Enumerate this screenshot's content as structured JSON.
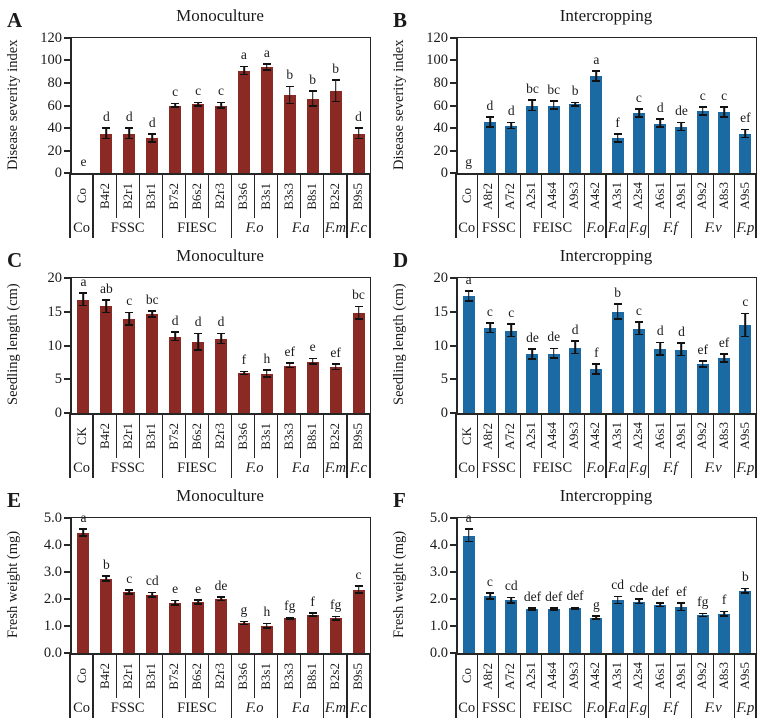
{
  "figure": {
    "background": "#ffffff",
    "axis_color": "#262626",
    "error_bar_color": "#111111",
    "monoculture_bar_color": "#8b2a25",
    "intercropping_bar_color": "#1c6aa3"
  },
  "chart_data": [
    {
      "type": "bar",
      "panel": "A",
      "title": "Monoculture",
      "ylabel": "Disease severity index",
      "ylim": [
        0,
        120
      ],
      "yticks": [
        "120",
        "100",
        "80",
        "60",
        "40",
        "20",
        "0"
      ],
      "bar_color": "#8b2a25",
      "categories": [
        "Co",
        "B4r2",
        "B2r1",
        "B3r1",
        "B7s2",
        "B6s2",
        "B2r3",
        "B3s6",
        "B3s1",
        "B3s3",
        "B8s1",
        "B2s2",
        "B9s5"
      ],
      "values": [
        0,
        35,
        35,
        31,
        60,
        61,
        60,
        91,
        94,
        69,
        66,
        73,
        35
      ],
      "errors": [
        0,
        5,
        5,
        4,
        2,
        2,
        3,
        4,
        3,
        8,
        7,
        10,
        5
      ],
      "sig_letters": [
        "e",
        "d",
        "d",
        "d",
        "c",
        "c",
        "c",
        "a",
        "a",
        "b",
        "b",
        "b",
        "d"
      ],
      "groups": [
        {
          "label": "Co",
          "span": 1,
          "italic": false
        },
        {
          "label": "FSSC",
          "span": 3,
          "italic": false
        },
        {
          "label": "FIESC",
          "span": 3,
          "italic": false
        },
        {
          "label": "F.o",
          "span": 2,
          "italic": true
        },
        {
          "label": "F.a",
          "span": 2,
          "italic": true
        },
        {
          "label": "F.m",
          "span": 1,
          "italic": true
        },
        {
          "label": "F.c",
          "span": 1,
          "italic": true
        }
      ]
    },
    {
      "type": "bar",
      "panel": "B",
      "title": "Intercropping",
      "ylabel": "Disease severity index",
      "ylim": [
        0,
        120
      ],
      "yticks": [
        "120",
        "100",
        "80",
        "60",
        "40",
        "20",
        "0"
      ],
      "bar_color": "#1c6aa3",
      "categories": [
        "Co",
        "A8r2",
        "A7r2",
        "A2s1",
        "A4s4",
        "A9s3",
        "A4s2",
        "A3s1",
        "A2s4",
        "A6s1",
        "A9s1",
        "A9s2",
        "A8s3",
        "A9s5"
      ],
      "values": [
        0,
        45,
        42,
        60,
        60,
        61,
        86,
        31,
        53,
        44,
        41,
        55,
        54,
        35
      ],
      "errors": [
        0,
        5,
        3,
        5,
        4,
        2,
        5,
        4,
        4,
        4,
        4,
        4,
        5,
        4
      ],
      "sig_letters": [
        "g",
        "d",
        "d",
        "bc",
        "bc",
        "b",
        "a",
        "f",
        "c",
        "d",
        "de",
        "c",
        "c",
        "ef"
      ],
      "groups": [
        {
          "label": "Co",
          "span": 1,
          "italic": false
        },
        {
          "label": "FSSC",
          "span": 2,
          "italic": false
        },
        {
          "label": "FEISC",
          "span": 3,
          "italic": false
        },
        {
          "label": "F.o",
          "span": 1,
          "italic": true
        },
        {
          "label": "F.a",
          "span": 1,
          "italic": true
        },
        {
          "label": "F.g",
          "span": 1,
          "italic": true
        },
        {
          "label": "F.f",
          "span": 2,
          "italic": true
        },
        {
          "label": "F.v",
          "span": 2,
          "italic": true
        },
        {
          "label": "F.p",
          "span": 1,
          "italic": true
        }
      ]
    },
    {
      "type": "bar",
      "panel": "C",
      "title": "Monoculture",
      "ylabel": "Seedling length (cm)",
      "ylim": [
        0,
        20
      ],
      "yticks": [
        "20",
        "15",
        "10",
        "5",
        "0"
      ],
      "bar_color": "#8b2a25",
      "categories": [
        "CK",
        "B4r2",
        "B2r1",
        "B3r1",
        "B7s2",
        "B6s2",
        "B2r3",
        "B3s6",
        "B3s1",
        "B3s3",
        "B8s1",
        "B2s2",
        "B9s5"
      ],
      "values": [
        16.8,
        15.8,
        13.9,
        14.6,
        11.3,
        10.5,
        11.0,
        5.9,
        5.8,
        7.0,
        7.6,
        6.8,
        14.8
      ],
      "errors": [
        1.0,
        1.0,
        1.0,
        0.5,
        0.7,
        1.3,
        0.8,
        0.3,
        0.6,
        0.4,
        0.5,
        0.5,
        1.0
      ],
      "sig_letters": [
        "a",
        "ab",
        "c",
        "bc",
        "d",
        "d",
        "d",
        "f",
        "h",
        "ef",
        "e",
        "ef",
        "bc"
      ],
      "groups": [
        {
          "label": "Co",
          "span": 1,
          "italic": false
        },
        {
          "label": "FSSC",
          "span": 3,
          "italic": false
        },
        {
          "label": "FIESC",
          "span": 3,
          "italic": false
        },
        {
          "label": "F.o",
          "span": 2,
          "italic": true
        },
        {
          "label": "F.a",
          "span": 2,
          "italic": true
        },
        {
          "label": "F.m",
          "span": 1,
          "italic": true
        },
        {
          "label": "F.c",
          "span": 1,
          "italic": true
        }
      ]
    },
    {
      "type": "bar",
      "panel": "D",
      "title": "Intercropping",
      "ylabel": "Seedling length (cm)",
      "ylim": [
        0,
        20
      ],
      "yticks": [
        "20",
        "15",
        "10",
        "5",
        "0"
      ],
      "bar_color": "#1c6aa3",
      "categories": [
        "CK",
        "A8r2",
        "A7r2",
        "A2s1",
        "A4s4",
        "A9s3",
        "A4s2",
        "A3s1",
        "A2s4",
        "A6s1",
        "A9s1",
        "A9s2",
        "A8s3",
        "A9s5"
      ],
      "values": [
        17.3,
        12.6,
        12.2,
        8.7,
        8.8,
        9.7,
        6.5,
        15.0,
        12.5,
        9.5,
        9.4,
        7.2,
        8.1,
        13.0
      ],
      "errors": [
        0.8,
        0.8,
        1.0,
        0.8,
        0.8,
        1.0,
        0.8,
        1.2,
        1.0,
        1.0,
        1.0,
        0.5,
        0.7,
        1.8
      ],
      "sig_letters": [
        "a",
        "c",
        "c",
        "de",
        "de",
        "d",
        "f",
        "b",
        "c",
        "d",
        "d",
        "ef",
        "ef",
        "c"
      ],
      "groups": [
        {
          "label": "Co",
          "span": 1,
          "italic": false
        },
        {
          "label": "FSSC",
          "span": 2,
          "italic": false
        },
        {
          "label": "FEISC",
          "span": 3,
          "italic": false
        },
        {
          "label": "F.o",
          "span": 1,
          "italic": true
        },
        {
          "label": "F.a",
          "span": 1,
          "italic": true
        },
        {
          "label": "F.g",
          "span": 1,
          "italic": true
        },
        {
          "label": "F.f",
          "span": 2,
          "italic": true
        },
        {
          "label": "F.v",
          "span": 2,
          "italic": true
        },
        {
          "label": "F.p",
          "span": 1,
          "italic": true
        }
      ]
    },
    {
      "type": "bar",
      "panel": "E",
      "title": "Monoculture",
      "ylabel": "Fresh weight (mg)",
      "ylim": [
        0,
        5
      ],
      "yticks": [
        "5.0",
        "4.0",
        "3.0",
        "2.0",
        "1.0",
        "0.0"
      ],
      "bar_color": "#8b2a25",
      "categories": [
        "Co",
        "B4r2",
        "B2r1",
        "B3r1",
        "B7s2",
        "B6s2",
        "B2r3",
        "B3s6",
        "B3s1",
        "B3s3",
        "B8s1",
        "B2s2",
        "B9s5"
      ],
      "values": [
        4.45,
        2.75,
        2.25,
        2.15,
        1.85,
        1.88,
        2.0,
        1.1,
        1.0,
        1.28,
        1.42,
        1.28,
        2.35
      ],
      "errors": [
        0.15,
        0.12,
        0.1,
        0.1,
        0.1,
        0.1,
        0.08,
        0.08,
        0.1,
        0.05,
        0.08,
        0.08,
        0.15
      ],
      "sig_letters": [
        "a",
        "b",
        "c",
        "cd",
        "e",
        "e",
        "de",
        "g",
        "h",
        "fg",
        "f",
        "fg",
        "c"
      ],
      "groups": [
        {
          "label": "Co",
          "span": 1,
          "italic": false
        },
        {
          "label": "FSSC",
          "span": 3,
          "italic": false
        },
        {
          "label": "FIESC",
          "span": 3,
          "italic": false
        },
        {
          "label": "F.o",
          "span": 2,
          "italic": true
        },
        {
          "label": "F.a",
          "span": 2,
          "italic": true
        },
        {
          "label": "F.m",
          "span": 1,
          "italic": true
        },
        {
          "label": "F.c",
          "span": 1,
          "italic": true
        }
      ]
    },
    {
      "type": "bar",
      "panel": "F",
      "title": "Intercropping",
      "ylabel": "Fresh weight (mg)",
      "ylim": [
        0,
        5
      ],
      "yticks": [
        "5.0",
        "4.0",
        "3.0",
        "2.0",
        "1.0",
        "0.0"
      ],
      "bar_color": "#1c6aa3",
      "categories": [
        "Co",
        "A8r2",
        "A7r2",
        "A2s1",
        "A4s4",
        "A9s3",
        "A4s2",
        "A3s1",
        "A2s4",
        "A6s1",
        "A9s1",
        "A9s2",
        "A8s3",
        "A9s5"
      ],
      "values": [
        4.35,
        2.1,
        1.95,
        1.62,
        1.62,
        1.65,
        1.3,
        1.95,
        1.9,
        1.78,
        1.7,
        1.4,
        1.45,
        2.3
      ],
      "errors": [
        0.25,
        0.12,
        0.12,
        0.05,
        0.05,
        0.05,
        0.07,
        0.15,
        0.1,
        0.08,
        0.15,
        0.07,
        0.1,
        0.1
      ],
      "sig_letters": [
        "a",
        "c",
        "cd",
        "def",
        "def",
        "def",
        "g",
        "cd",
        "cde",
        "def",
        "ef",
        "fg",
        "f",
        "b"
      ],
      "groups": [
        {
          "label": "Co",
          "span": 1,
          "italic": false
        },
        {
          "label": "FSSC",
          "span": 2,
          "italic": false
        },
        {
          "label": "FEISC",
          "span": 3,
          "italic": false
        },
        {
          "label": "F.o",
          "span": 1,
          "italic": true
        },
        {
          "label": "F.a",
          "span": 1,
          "italic": true
        },
        {
          "label": "F.g",
          "span": 1,
          "italic": true
        },
        {
          "label": "F.f",
          "span": 2,
          "italic": true
        },
        {
          "label": "F.v",
          "span": 2,
          "italic": true
        },
        {
          "label": "F.p",
          "span": 1,
          "italic": true
        }
      ]
    }
  ]
}
